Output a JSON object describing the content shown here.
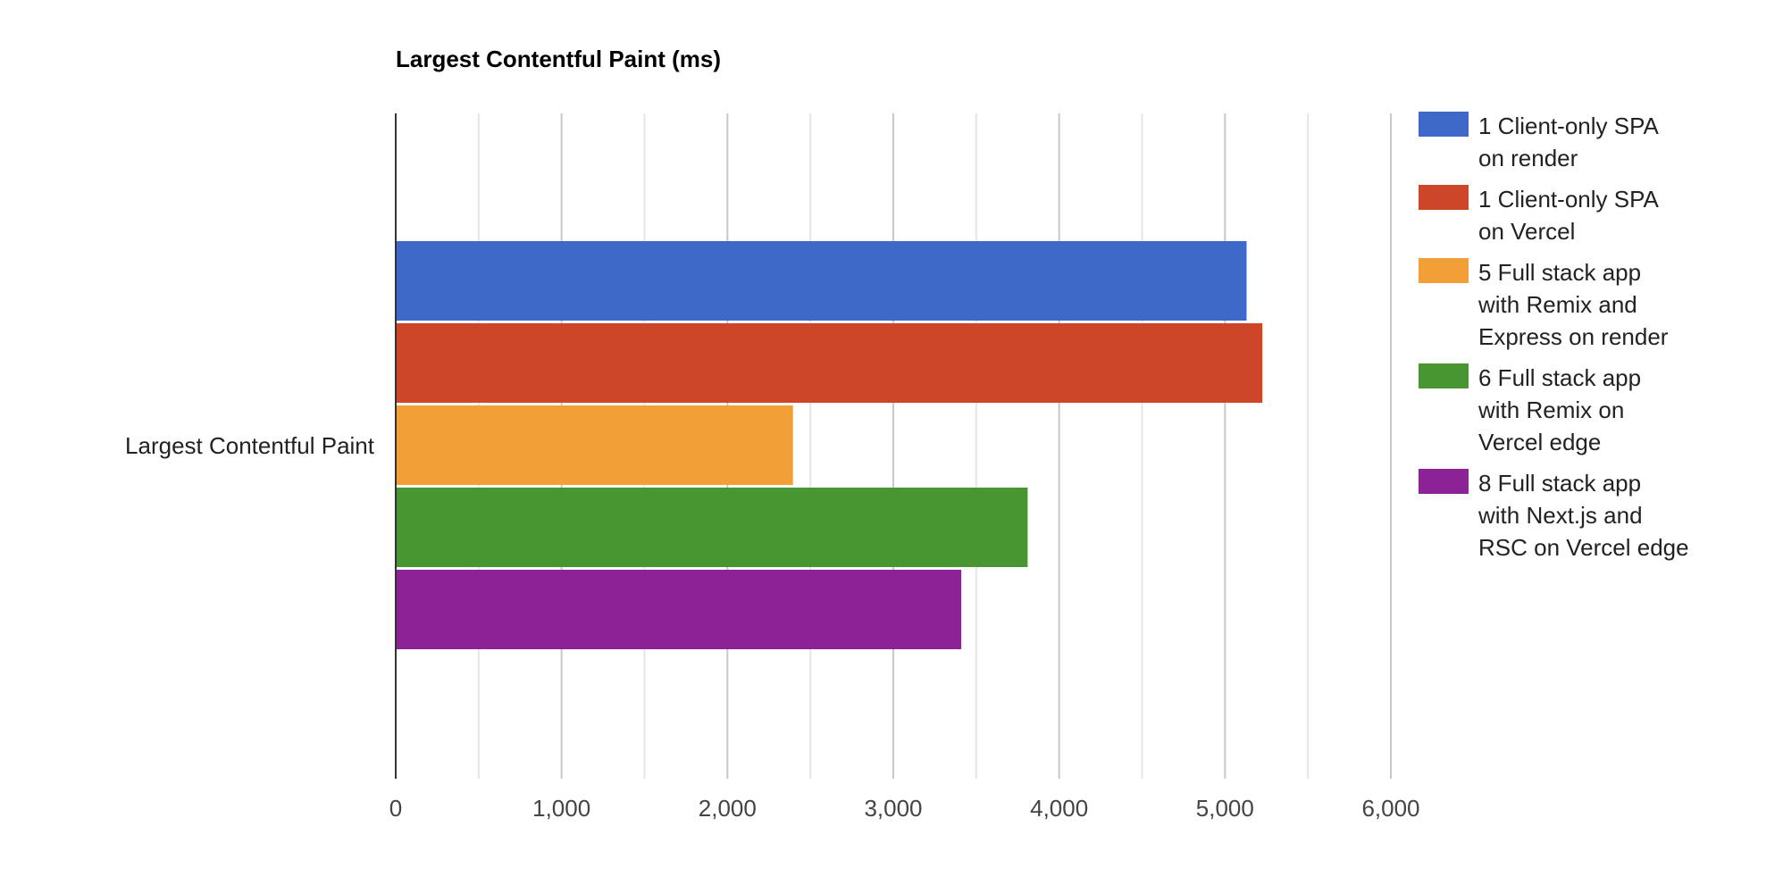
{
  "chart_data": {
    "type": "bar",
    "orientation": "horizontal",
    "title": "Largest Contentful Paint (ms)",
    "categories": [
      "Largest Contentful Paint"
    ],
    "xlim": [
      0,
      6000
    ],
    "ticks": [
      0,
      1000,
      2000,
      3000,
      4000,
      5000,
      6000
    ],
    "tick_labels": [
      "0",
      "1,000",
      "2,000",
      "3,000",
      "4,000",
      "5,000",
      "6,000"
    ],
    "grid": true,
    "legend_position": "right",
    "series": [
      {
        "name": "1 Client-only SPA on render",
        "values": [
          5130
        ],
        "color": "#3f69c9"
      },
      {
        "name": "1 Client-only SPA on Vercel",
        "values": [
          5225
        ],
        "color": "#cc4627"
      },
      {
        "name": "5 Full stack app with Remix and Express on render",
        "values": [
          2395
        ],
        "color": "#f29f38"
      },
      {
        "name": "6 Full stack app with Remix on Vercel edge",
        "values": [
          3810
        ],
        "color": "#479631"
      },
      {
        "name": "8 Full stack app with Next.js and RSC on Vercel edge",
        "values": [
          3410
        ],
        "color": "#8c2295"
      }
    ]
  }
}
